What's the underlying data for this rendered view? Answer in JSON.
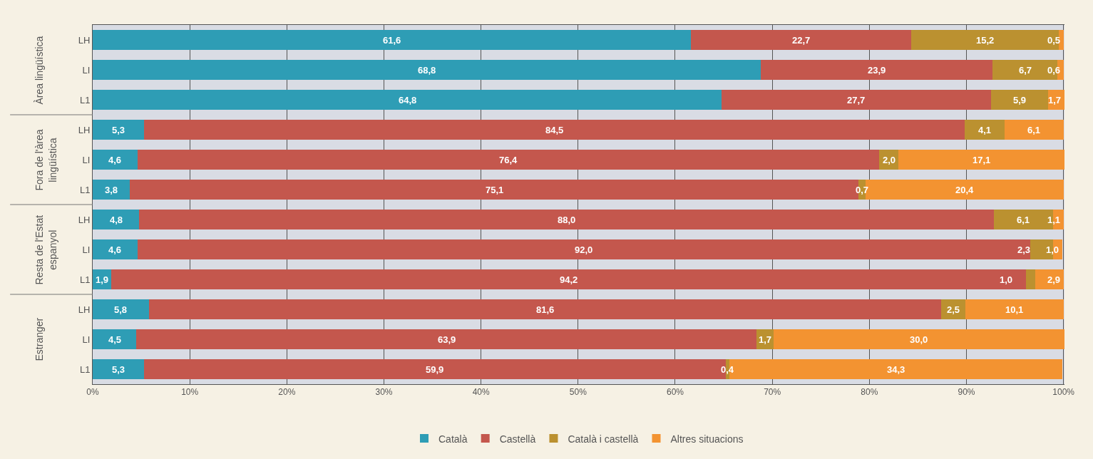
{
  "chart_data": {
    "type": "bar",
    "orientation": "horizontal",
    "stacked": true,
    "categories": [
      "LH",
      "LI",
      "L1",
      "LH",
      "LI",
      "L1",
      "LH",
      "LI",
      "L1",
      "LH",
      "LI",
      "L1"
    ],
    "annotations": [
      "Àrea lingüística",
      "Fora de l'àrea lingüística",
      "Resta de l'Estat espanyol",
      "Estranger"
    ],
    "series": [
      {
        "name": "Català",
        "color": "#2e9db5",
        "values": [
          61.6,
          68.8,
          64.8,
          5.3,
          4.6,
          3.8,
          4.8,
          4.6,
          1.9,
          5.8,
          4.5,
          5.3
        ],
        "value_labels": [
          "61,6",
          "68,8",
          "64,8",
          "5,3",
          "4,6",
          "3,8",
          "4,8",
          "4,6",
          "1,9",
          "5,8",
          "4,5",
          "5,3"
        ]
      },
      {
        "name": "Castellà",
        "color": "#c4574d",
        "values": [
          22.7,
          23.9,
          27.7,
          84.5,
          76.4,
          75.1,
          88.0,
          92.0,
          94.2,
          81.6,
          63.9,
          59.9
        ],
        "value_labels": [
          "22,7",
          "23,9",
          "27,7",
          "84,5",
          "76,4",
          "75,1",
          "88,0",
          "92,0",
          "94,2",
          "81,6",
          "63,9",
          "59,9"
        ]
      },
      {
        "name": "Català i castellà",
        "color": "#bb9130",
        "values": [
          15.2,
          6.7,
          5.9,
          4.1,
          2.0,
          0.7,
          6.1,
          2.3,
          1.0,
          2.5,
          1.7,
          0.4
        ],
        "value_labels": [
          "15,2",
          "6,7",
          "5,9",
          "4,1",
          "2,0",
          "0,7",
          "6,1",
          "2,3",
          "1,0",
          "2,5",
          "1,7",
          "0,4"
        ]
      },
      {
        "name": "Altres situacions",
        "color": "#f39331",
        "values": [
          0.5,
          0.6,
          1.7,
          6.1,
          17.1,
          20.4,
          1.1,
          1.0,
          2.9,
          10.1,
          30.0,
          34.3
        ],
        "value_labels": [
          "0,5",
          "0,6",
          "1,7",
          "6,1",
          "17,1",
          "20,4",
          "1,1",
          "1,0",
          "2,9",
          "10,1",
          "30,0",
          "34,3"
        ]
      }
    ],
    "xlim": [
      0,
      100.1
    ],
    "xticks": [
      {
        "value": 0,
        "label": "0%"
      },
      {
        "value": 10,
        "label": "10%"
      },
      {
        "value": 20,
        "label": "20%"
      },
      {
        "value": 30,
        "label": "30%"
      },
      {
        "value": 40,
        "label": "40%"
      },
      {
        "value": 50,
        "label": "50%"
      },
      {
        "value": 60,
        "label": "60%"
      },
      {
        "value": 70,
        "label": "70%"
      },
      {
        "value": 80,
        "label": "80%"
      },
      {
        "value": 90,
        "label": "90%"
      },
      {
        "value": 100,
        "label": "100%"
      }
    ],
    "grid": "x",
    "legend": "bottom"
  }
}
